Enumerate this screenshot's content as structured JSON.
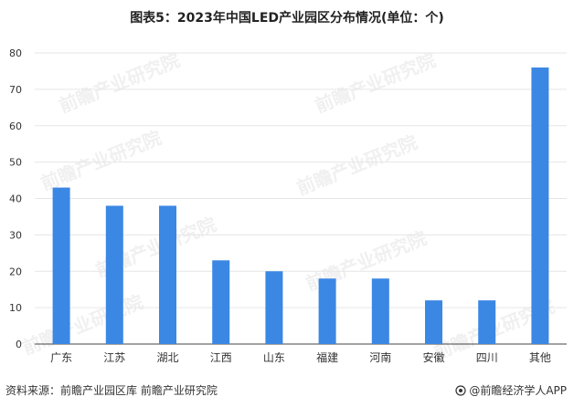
{
  "chart_data": {
    "type": "bar",
    "title": "图表5：2023年中国LED产业园区分布情况(单位：个)",
    "categories": [
      "广东",
      "江苏",
      "湖北",
      "江西",
      "山东",
      "福建",
      "河南",
      "安徽",
      "四川",
      "其他"
    ],
    "values": [
      43,
      38,
      38,
      23,
      20,
      18,
      18,
      12,
      12,
      76
    ],
    "xlabel": "",
    "ylabel": "",
    "ylim": [
      0,
      80
    ],
    "yticks": [
      0,
      10,
      20,
      30,
      40,
      50,
      60,
      70,
      80
    ],
    "grid": true,
    "bar_color": "#3b87e4",
    "grid_color": "#e6e6e6",
    "axis_color": "#444444"
  },
  "source": "资料来源：前瞻产业园区库 前瞻产业研究院",
  "brand": "@前瞻经济学人APP",
  "watermark": "前瞻产业研究院"
}
